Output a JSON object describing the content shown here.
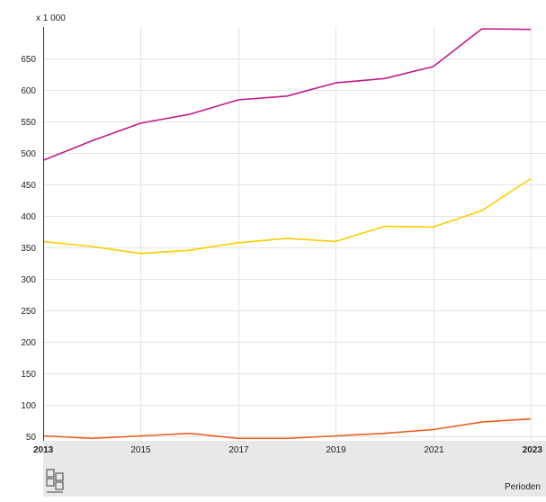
{
  "chart_data": {
    "type": "line",
    "unit_label": "x 1 000",
    "xlabel": "Perioden",
    "ylabel": "",
    "x": [
      2013,
      2014,
      2015,
      2016,
      2017,
      2018,
      2019,
      2020,
      2021,
      2022,
      2023
    ],
    "x_ticks": [
      "2013",
      "2015",
      "2017",
      "2019",
      "2021",
      "2023"
    ],
    "y_ticks": [
      50,
      100,
      150,
      200,
      250,
      300,
      350,
      400,
      450,
      500,
      550,
      600,
      650
    ],
    "xlim": [
      2013,
      2023
    ],
    "ylim": [
      45,
      697
    ],
    "grid": true,
    "legend": "none",
    "series": [
      {
        "color": "#c2188f",
        "values": [
          488,
          519,
          547,
          561,
          584,
          590,
          611,
          618,
          637,
          697,
          696
        ]
      },
      {
        "color": "#ffcc00",
        "values": [
          359,
          351,
          340,
          345,
          357,
          364,
          359,
          383,
          382,
          408,
          459
        ]
      },
      {
        "color": "#e8601c",
        "values": [
          50,
          46,
          50,
          54,
          46,
          46,
          50,
          54,
          60,
          72,
          77
        ]
      }
    ]
  }
}
